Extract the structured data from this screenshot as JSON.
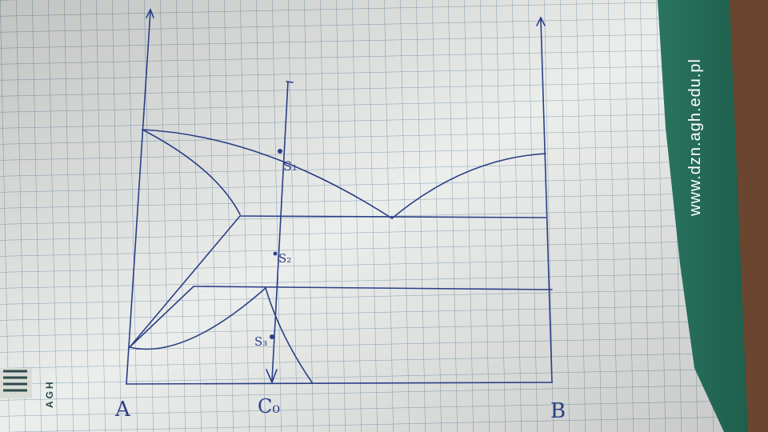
{
  "photo": {
    "subject": "hand-drawn binary phase diagram on graph paper",
    "colors": {
      "ink": "#2b3f86",
      "grid": "#7fa0b5",
      "paper": "#e9ece9",
      "folder": "#2f7a62",
      "wood": "#5a3a26"
    }
  },
  "labels": {
    "left_component": "A",
    "right_component": "B",
    "composition": "C₀",
    "point_1": "S₁",
    "point_2": "S₂",
    "point_3": "S₃"
  },
  "folder": {
    "url": "www.dzn.agh.edu.pl",
    "logo_text": "AGH"
  }
}
